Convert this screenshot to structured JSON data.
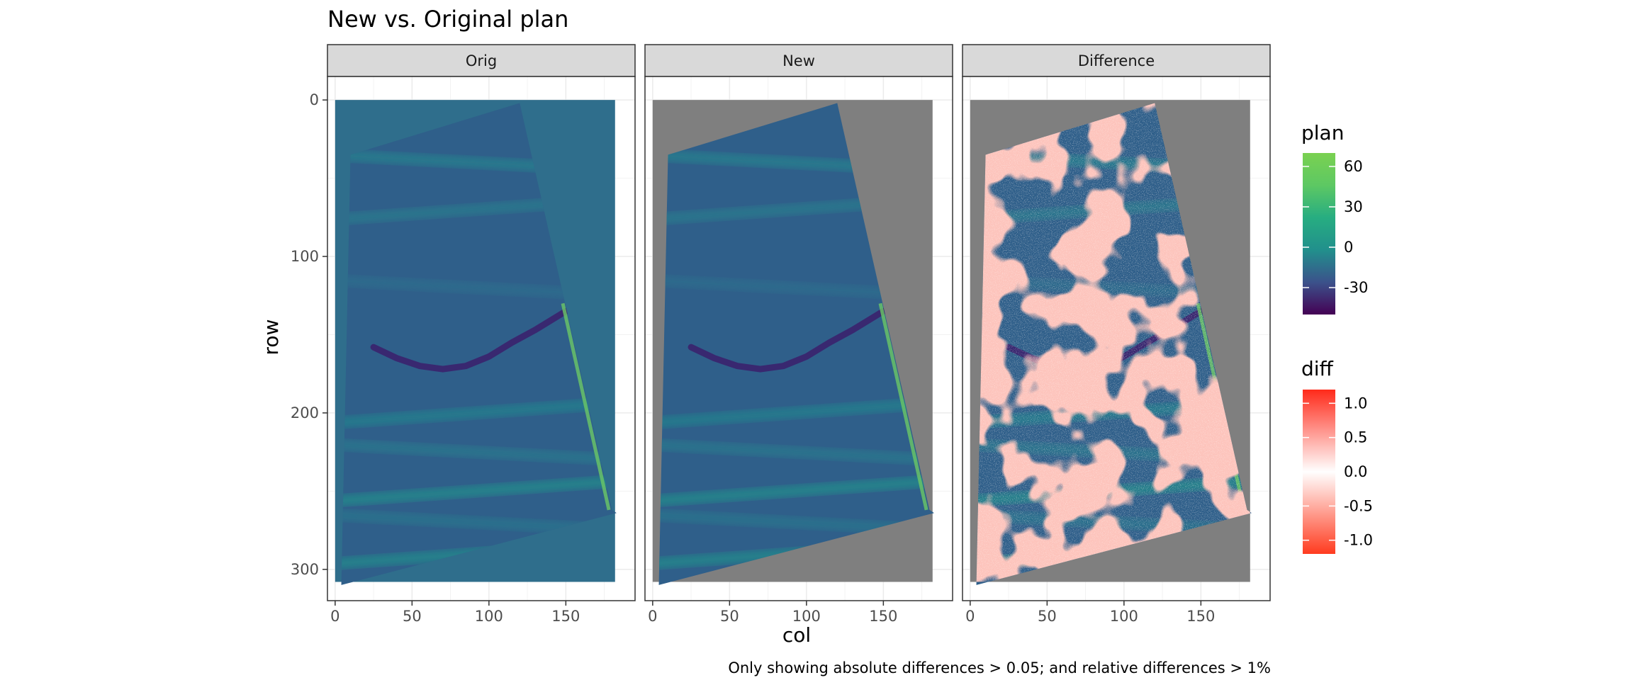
{
  "chart_data": {
    "type": "heatmap",
    "title": "New vs. Original plan",
    "caption": "Only showing absolute differences > 0.05; and relative differences > 1%",
    "xlabel": "col",
    "ylabel": "row",
    "facets": [
      "Orig",
      "New",
      "Difference"
    ],
    "x_ticks": [
      0,
      50,
      100,
      150
    ],
    "y_ticks": [
      0,
      100,
      200,
      300
    ],
    "xlim": [
      -5,
      195
    ],
    "ylim": [
      320,
      -15
    ],
    "y_reversed": true,
    "raster_extent": {
      "col": [
        0,
        182
      ],
      "row": [
        0,
        308
      ]
    },
    "field_outline": {
      "col": [
        4,
        10,
        120,
        180,
        183,
        179,
        4
      ],
      "row": [
        310,
        35,
        2,
        262,
        264,
        265,
        310
      ]
    },
    "ridge_curve": {
      "col": [
        25,
        40,
        55,
        70,
        85,
        100,
        115,
        130,
        150
      ],
      "row": [
        158,
        165,
        170,
        172,
        170,
        164,
        155,
        147,
        135
      ]
    },
    "plan_legend": {
      "title": "plan",
      "ticks": [
        60,
        30,
        0,
        -30
      ],
      "range": [
        -50,
        70
      ],
      "colors": [
        "#440154",
        "#3b528b",
        "#21908c",
        "#27ad81",
        "#5dc863",
        "#7ad151"
      ],
      "background_value_orig": 0,
      "na_color": "#7f7f7f"
    },
    "diff_legend": {
      "title": "diff",
      "ticks": [
        1.0,
        0.5,
        0.0,
        -0.5,
        -1.0
      ],
      "tick_labels": [
        "1.0",
        "0.5",
        "0.0",
        "-0.5",
        "-1.0"
      ],
      "range": [
        -1.2,
        1.2
      ],
      "colors": [
        "#ff3b1f",
        "#ffffff",
        "#ff2a1a"
      ]
    }
  }
}
